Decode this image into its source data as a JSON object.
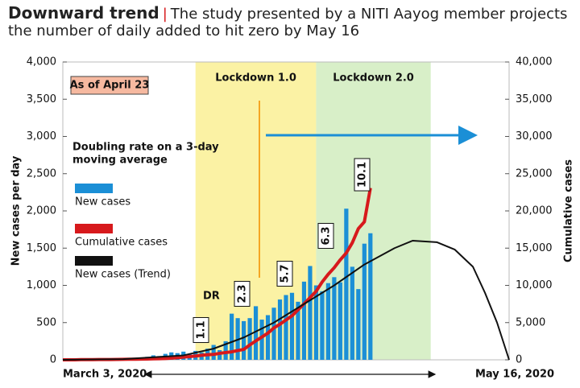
{
  "chart_data": {
    "type": "bar-line",
    "title": "Downward trend",
    "subtitle": "The study presented by a NITI Aayog member projects the number of daily added to hit zero by May 16",
    "note": "As of April 23",
    "legend_title": [
      "Doubling rate on a 3-day",
      "moving average"
    ],
    "dr_label": "DR",
    "ylabel": "New cases per day",
    "y2label": "Cumulative cases",
    "ylim": [
      0,
      4000
    ],
    "yticks": [
      0,
      500,
      {
        "value": 1000,
        "label": "1,000"
      },
      {
        "value": 1500,
        "label": "1,500"
      },
      {
        "value": 2000,
        "label": "2,000"
      },
      {
        "value": 2500,
        "label": "2,500"
      },
      {
        "value": 3000,
        "label": "3,000"
      },
      {
        "value": 3500,
        "label": "3,500"
      },
      {
        "value": 4000,
        "label": "4,000"
      }
    ],
    "y2lim": [
      0,
      40000
    ],
    "y2ticks": [
      0,
      {
        "value": 5000,
        "label": "5,000"
      },
      {
        "value": 10000,
        "label": "10,000"
      },
      {
        "value": 15000,
        "label": "15,000"
      },
      {
        "value": 20000,
        "label": "20,000"
      },
      {
        "value": 25000,
        "label": "25,000"
      },
      {
        "value": 30000,
        "label": "30,000"
      },
      {
        "value": 35000,
        "label": "35,000"
      },
      {
        "value": 40000,
        "label": "40,000"
      }
    ],
    "xlim": [
      "2020-03-03",
      "2020-05-16"
    ],
    "xticks": [
      {
        "value": "2020-03-03",
        "label": "March 3, 2020"
      },
      {
        "value": "2020-05-16",
        "label": "May 16, 2020"
      }
    ],
    "regions": [
      {
        "label": "Lockdown 1.0",
        "start": "2020-03-25",
        "end": "2020-04-14",
        "color": "#fbf2a4"
      },
      {
        "label": "Lockdown 2.0",
        "start": "2020-04-14",
        "end": "2020-05-03",
        "color": "#d8efc8"
      }
    ],
    "x": [
      "2020-03-03",
      "2020-03-04",
      "2020-03-05",
      "2020-03-06",
      "2020-03-07",
      "2020-03-08",
      "2020-03-09",
      "2020-03-10",
      "2020-03-11",
      "2020-03-12",
      "2020-03-13",
      "2020-03-14",
      "2020-03-15",
      "2020-03-16",
      "2020-03-17",
      "2020-03-18",
      "2020-03-19",
      "2020-03-20",
      "2020-03-21",
      "2020-03-22",
      "2020-03-23",
      "2020-03-24",
      "2020-03-25",
      "2020-03-26",
      "2020-03-27",
      "2020-03-28",
      "2020-03-29",
      "2020-03-30",
      "2020-03-31",
      "2020-04-01",
      "2020-04-02",
      "2020-04-03",
      "2020-04-04",
      "2020-04-05",
      "2020-04-06",
      "2020-04-07",
      "2020-04-08",
      "2020-04-09",
      "2020-04-10",
      "2020-04-11",
      "2020-04-12",
      "2020-04-13",
      "2020-04-14",
      "2020-04-15",
      "2020-04-16",
      "2020-04-17",
      "2020-04-18",
      "2020-04-19",
      "2020-04-20",
      "2020-04-21",
      "2020-04-22",
      "2020-04-23"
    ],
    "series": [
      {
        "name": "New cases",
        "kind": "bar",
        "color": "#1b8fd6",
        "values": [
          1,
          22,
          1,
          2,
          3,
          5,
          9,
          8,
          12,
          7,
          14,
          10,
          20,
          15,
          40,
          60,
          50,
          80,
          100,
          90,
          110,
          80,
          120,
          100,
          150,
          200,
          130,
          250,
          620,
          560,
          520,
          560,
          720,
          540,
          600,
          700,
          810,
          870,
          900,
          780,
          1050,
          1260,
          1000,
          920,
          1030,
          1110,
          1040,
          2030,
          1250,
          950,
          1560,
          1700
        ]
      },
      {
        "name": "Cumulative  cases",
        "kind": "line",
        "axis": "y2",
        "color": "#d7191c",
        "width": 4,
        "values": [
          5,
          5,
          6,
          28,
          30,
          31,
          34,
          39,
          43,
          50,
          73,
          75,
          83,
          90,
          114,
          137,
          151,
          173,
          223,
          283,
          360,
          434,
          519,
          606,
          694,
          724,
          873,
          979,
          1071,
          1251,
          1397,
          1998,
          2543,
          3059,
          3588,
          4289,
          4778,
          5351,
          5916,
          6725,
          7529,
          8356,
          9205,
          10453,
          11487,
          12370,
          13430,
          14352,
          15722,
          17615,
          18539,
          23077
        ]
      },
      {
        "name": "New  cases (Trend)",
        "kind": "line",
        "color": "#111111",
        "width": 2,
        "x": [
          "2020-03-03",
          "2020-03-13",
          "2020-03-23",
          "2020-03-28",
          "2020-04-02",
          "2020-04-07",
          "2020-04-12",
          "2020-04-17",
          "2020-04-22",
          "2020-04-27",
          "2020-04-30",
          "2020-05-04",
          "2020-05-07",
          "2020-05-10",
          "2020-05-12",
          "2020-05-14",
          "2020-05-15",
          "2020-05-16"
        ],
        "values": [
          0,
          10,
          60,
          150,
          300,
          500,
          750,
          1000,
          1280,
          1500,
          1600,
          1580,
          1480,
          1250,
          900,
          500,
          250,
          0
        ]
      }
    ],
    "doubling_labels": [
      "1.1",
      "2.3",
      "5.7",
      "6.3",
      "10.1"
    ]
  }
}
